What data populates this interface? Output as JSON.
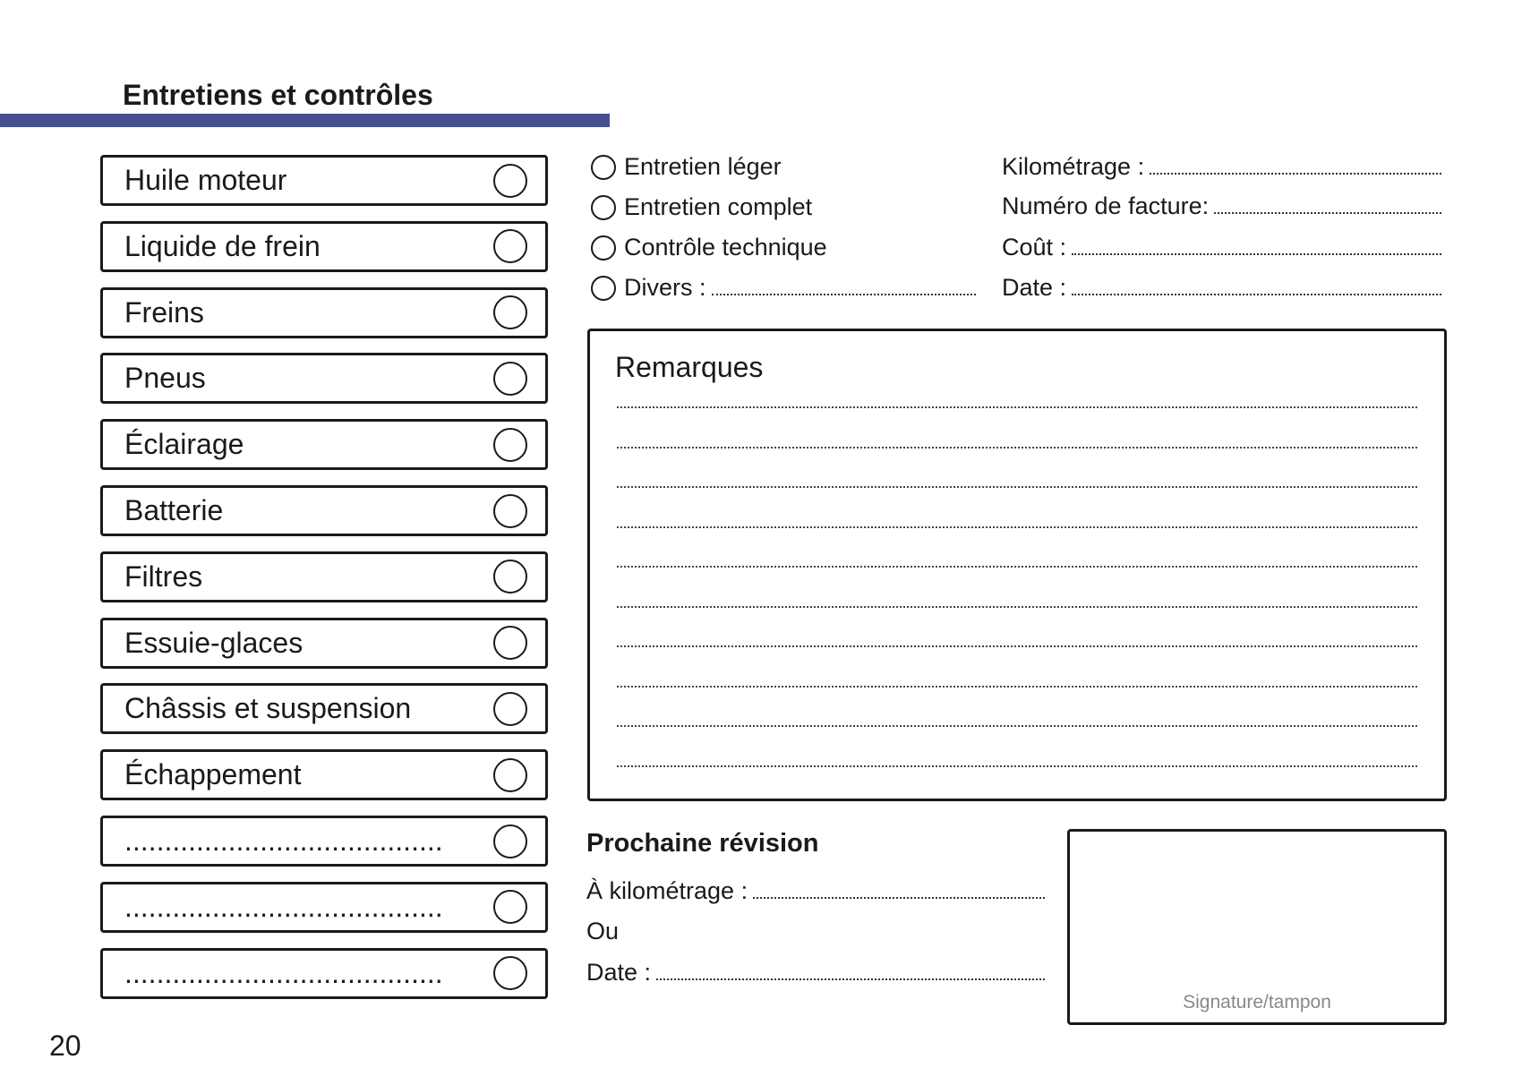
{
  "header": {
    "title": "Entretiens et contrôles",
    "accent_color": "#474f8c"
  },
  "checklist": [
    {
      "label": "Huile moteur",
      "checked": false
    },
    {
      "label": "Liquide de frein",
      "checked": false
    },
    {
      "label": "Freins",
      "checked": false
    },
    {
      "label": "Pneus",
      "checked": false
    },
    {
      "label": "Éclairage",
      "checked": false
    },
    {
      "label": "Batterie",
      "checked": false
    },
    {
      "label": "Filtres",
      "checked": false
    },
    {
      "label": "Essuie-glaces",
      "checked": false
    },
    {
      "label": "Châssis et suspension",
      "checked": false
    },
    {
      "label": "Échappement",
      "checked": false
    },
    {
      "label": "........................................",
      "checked": false
    },
    {
      "label": "........................................",
      "checked": false
    },
    {
      "label": "........................................",
      "checked": false
    }
  ],
  "service_type": {
    "options": [
      "Entretien léger",
      "Entretien complet",
      "Contrôle technique",
      "Divers :"
    ]
  },
  "fields": {
    "mileage": "Kilométrage :",
    "invoice": "Numéro de facture:",
    "cost": "Coût :",
    "date": "Date :"
  },
  "remarks": {
    "title": "Remarques"
  },
  "next_service": {
    "title": "Prochaine révision",
    "mileage": "À kilométrage :",
    "or": "Ou",
    "date": "Date :"
  },
  "signature": {
    "label": "Signature/tampon"
  },
  "page_number": "20"
}
